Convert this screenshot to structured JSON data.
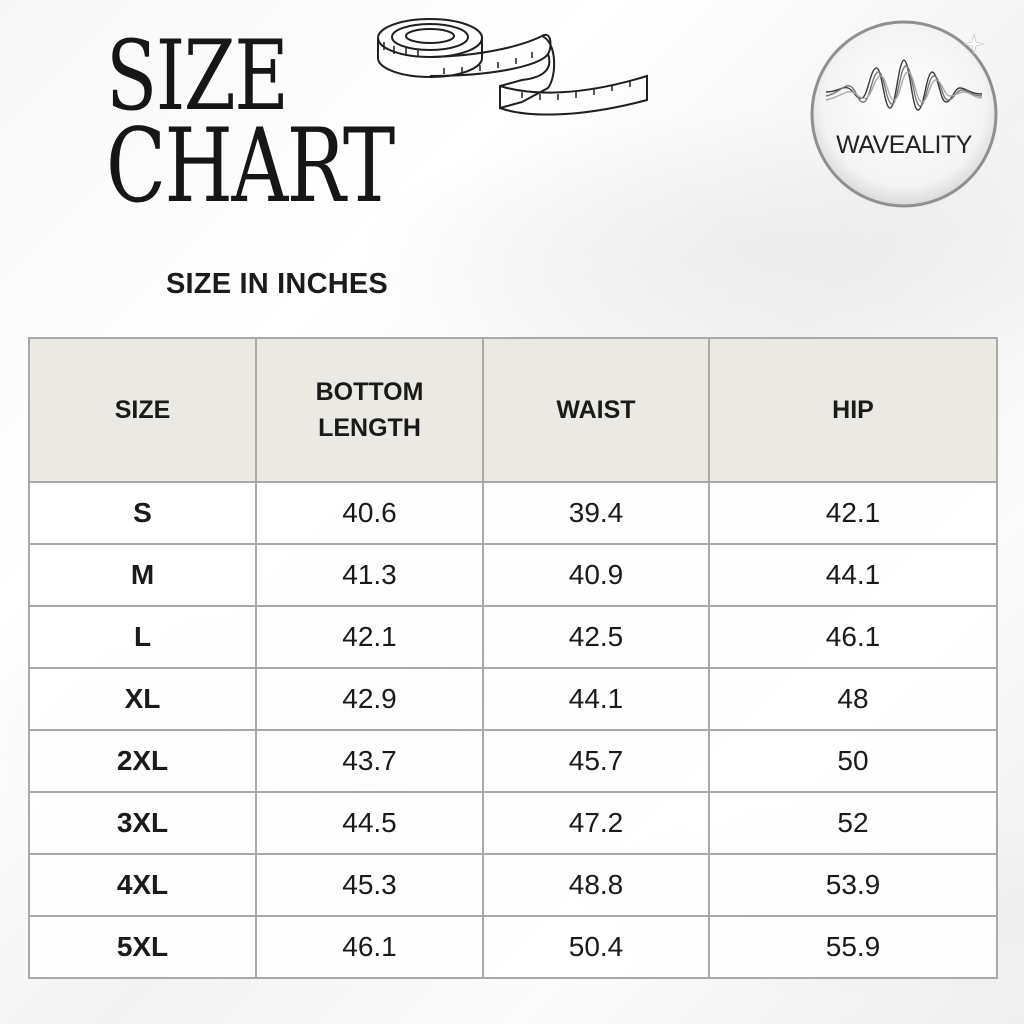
{
  "title": {
    "line1": "SIZE",
    "line2": "CHART"
  },
  "brand": {
    "name": "WAVEALITY"
  },
  "subtitle": "SIZE IN INCHES",
  "table": {
    "headers": [
      "SIZE",
      "BOTTOM\nLENGTH",
      "WAIST",
      "HIP"
    ],
    "rows": [
      {
        "size": "S",
        "bottom_length": "40.6",
        "waist": "39.4",
        "hip": "42.1"
      },
      {
        "size": "M",
        "bottom_length": "41.3",
        "waist": "40.9",
        "hip": "44.1"
      },
      {
        "size": "L",
        "bottom_length": "42.1",
        "waist": "42.5",
        "hip": "46.1"
      },
      {
        "size": "XL",
        "bottom_length": "42.9",
        "waist": "44.1",
        "hip": "48"
      },
      {
        "size": "2XL",
        "bottom_length": "43.7",
        "waist": "45.7",
        "hip": "50"
      },
      {
        "size": "3XL",
        "bottom_length": "44.5",
        "waist": "47.2",
        "hip": "52"
      },
      {
        "size": "4XL",
        "bottom_length": "45.3",
        "waist": "48.8",
        "hip": "53.9"
      },
      {
        "size": "5XL",
        "bottom_length": "46.1",
        "waist": "50.4",
        "hip": "55.9"
      }
    ]
  },
  "icons": {
    "tape": "measuring-tape-icon",
    "logo_wave": "sound-wave-icon"
  },
  "colors": {
    "header_bg": "#ebe9e4",
    "text": "#1a1a1a",
    "border": "#a9a9a9"
  }
}
